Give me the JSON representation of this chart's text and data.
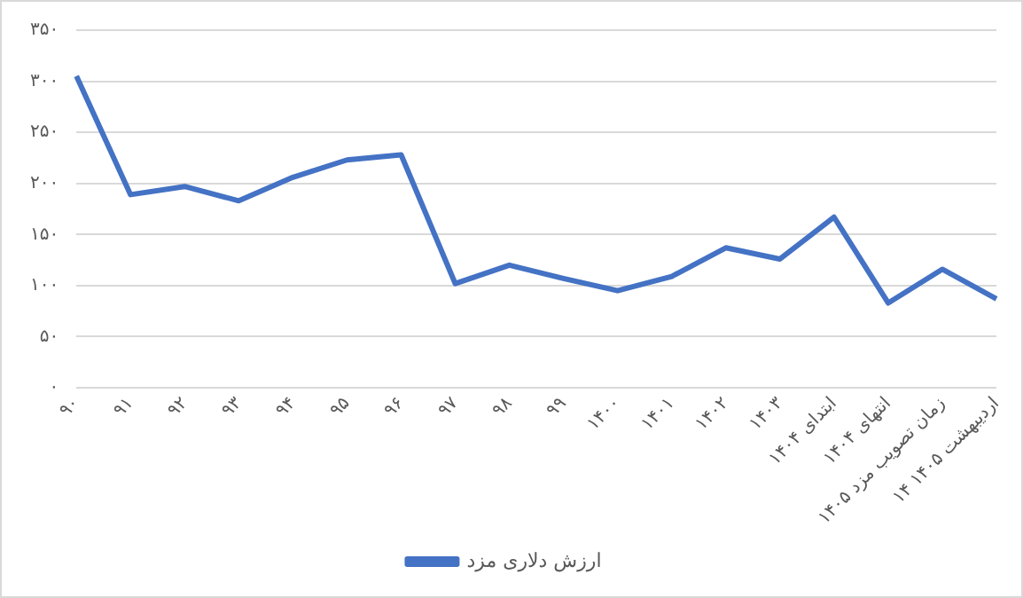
{
  "chart_data": {
    "type": "line",
    "categories": [
      "۹۰",
      "۹۱",
      "۹۲",
      "۹۳",
      "۹۴",
      "۹۵",
      "۹۶",
      "۹۷",
      "۹۸",
      "۹۹",
      "۱۴۰۰",
      "۱۴۰۱",
      "۱۴۰۲",
      "۱۴۰۳",
      "ابتدای ۱۴۰۴",
      "انتهای ۱۴۰۴",
      "زمان تصویب مزد ۱۴۰۵",
      "۱۴ اردیبهشت ۱۴۰۵"
    ],
    "series": [
      {
        "name": "ارزش دلاری مزد",
        "color": "#4472c4",
        "values": [
          305,
          189,
          197,
          183,
          206,
          223,
          228,
          102,
          120,
          107,
          95,
          109,
          137,
          126,
          167,
          83,
          116,
          87
        ]
      }
    ],
    "ylim": [
      0,
      350
    ],
    "yticks": [
      {
        "value": 0,
        "label": "۰"
      },
      {
        "value": 50,
        "label": "۵۰"
      },
      {
        "value": 100,
        "label": "۱۰۰"
      },
      {
        "value": 150,
        "label": "۱۵۰"
      },
      {
        "value": 200,
        "label": "۲۰۰"
      },
      {
        "value": 250,
        "label": "۲۵۰"
      },
      {
        "value": 300,
        "label": "۳۰۰"
      },
      {
        "value": 350,
        "label": "۳۵۰"
      }
    ],
    "grid": "y",
    "legend": "bottom",
    "marker": "none",
    "line_style": "solid"
  }
}
